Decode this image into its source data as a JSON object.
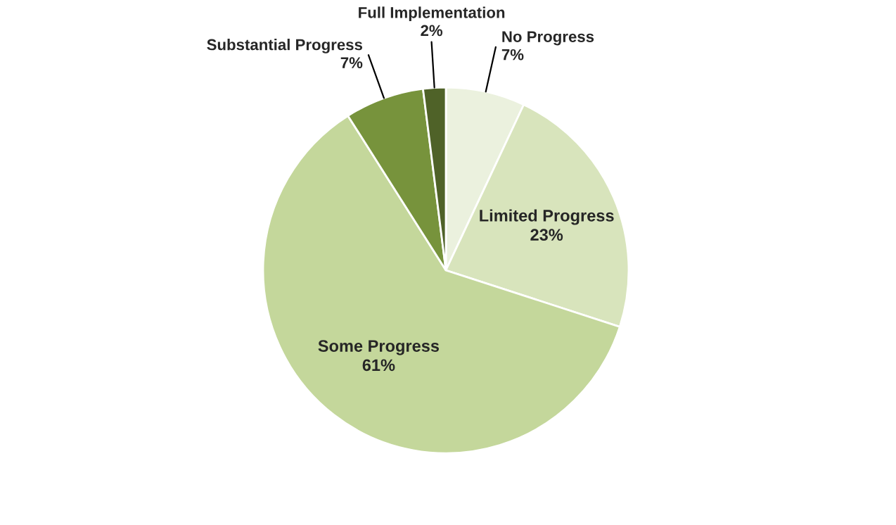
{
  "chart_data": {
    "type": "pie",
    "categories": [
      "No Progress",
      "Limited Progress",
      "Some Progress",
      "Substantial Progress",
      "Full Implementation"
    ],
    "values": [
      7,
      23,
      61,
      7,
      2
    ],
    "value_labels": [
      "7%",
      "23%",
      "61%",
      "7%",
      "2%"
    ],
    "colors": [
      "#ebf1de",
      "#d8e4bc",
      "#c4d79b",
      "#77933c",
      "#4f6228"
    ],
    "legend": false
  }
}
